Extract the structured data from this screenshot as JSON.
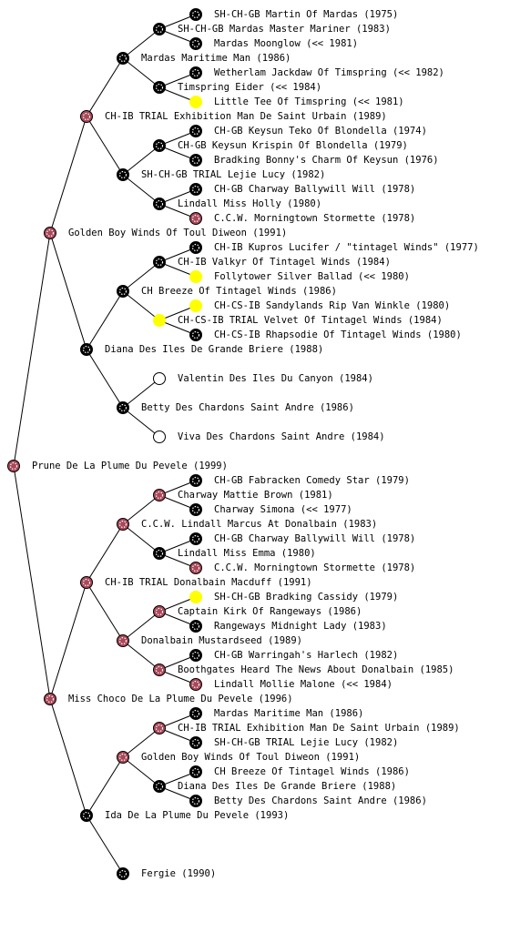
{
  "pedigree": {
    "label": "Prune De La Plume Du Pevele (1999)",
    "color": "#a84858",
    "parents": [
      {
        "label": "Golden Boy Winds Of Toul Diweon (1991)",
        "color": "#a84858",
        "parents": [
          {
            "label": "CH-IB TRIAL Exhibition Man De Saint Urbain (1989)",
            "color": "#a84858",
            "parents": [
              {
                "label": "Mardas Maritime Man (1986)",
                "color": "#000000",
                "parents": [
                  {
                    "label": "SH-CH-GB Mardas Master Mariner (1983)",
                    "color": "#000000",
                    "parents": [
                      {
                        "label": "SH-CH-GB Martin Of Mardas (1975)",
                        "color": "#000000"
                      },
                      {
                        "label": "Mardas Moonglow (<< 1981)",
                        "color": "#000000"
                      }
                    ]
                  },
                  {
                    "label": "Timspring Eider (<< 1984)",
                    "color": "#000000",
                    "parents": [
                      {
                        "label": "Wetherlam Jackdaw Of Timspring (<< 1982)",
                        "color": "#000000"
                      },
                      {
                        "label": "Little Tee Of Timspring (<< 1981)",
                        "color": "#ffff00"
                      }
                    ]
                  }
                ]
              },
              {
                "label": "SH-CH-GB TRIAL Lejie Lucy (1982)",
                "color": "#000000",
                "parents": [
                  {
                    "label": "CH-GB Keysun Krispin Of Blondella (1979)",
                    "color": "#000000",
                    "parents": [
                      {
                        "label": "CH-GB Keysun Teko Of Blondella (1974)",
                        "color": "#000000"
                      },
                      {
                        "label": "Bradking Bonny's Charm Of Keysun (1976)",
                        "color": "#000000"
                      }
                    ]
                  },
                  {
                    "label": "Lindall Miss Holly (1980)",
                    "color": "#000000",
                    "parents": [
                      {
                        "label": "CH-GB Charway Ballywill Will (1978)",
                        "color": "#000000"
                      },
                      {
                        "label": "C.C.W. Morningtown Stormette (1978)",
                        "color": "#a84858"
                      }
                    ]
                  }
                ]
              }
            ]
          },
          {
            "label": "Diana Des Iles De Grande Briere (1988)",
            "color": "#000000",
            "parents": [
              {
                "label": "CH Breeze Of Tintagel Winds (1986)",
                "color": "#000000",
                "parents": [
                  {
                    "label": "CH-IB Valkyr Of Tintagel Winds (1984)",
                    "color": "#000000",
                    "parents": [
                      {
                        "label": "CH-IB Kupros Lucifer / \"tintagel Winds\" (1977)",
                        "color": "#000000"
                      },
                      {
                        "label": "Follytower Silver Ballad (<< 1980)",
                        "color": "#ffff00"
                      }
                    ]
                  },
                  {
                    "label": "CH-CS-IB TRIAL Velvet Of Tintagel Winds (1984)",
                    "color": "#ffff00",
                    "parents": [
                      {
                        "label": "CH-CS-IB Sandylands Rip Van Winkle (1980)",
                        "color": "#ffff00"
                      },
                      {
                        "label": "CH-CS-IB Rhapsodie Of Tintagel Winds (1980)",
                        "color": "#000000"
                      }
                    ]
                  }
                ]
              },
              {
                "label": "Betty Des Chardons Saint Andre (1986)",
                "color": "#000000",
                "parents": [
                  {
                    "label": "Valentin Des Iles Du Canyon (1984)",
                    "color": "#ffffff"
                  },
                  {
                    "label": "Viva Des Chardons Saint Andre (1984)",
                    "color": "#ffffff"
                  }
                ]
              }
            ]
          }
        ]
      },
      {
        "label": "Miss Choco De La Plume Du Pevele (1996)",
        "color": "#a84858",
        "parents": [
          {
            "label": "CH-IB TRIAL Donalbain Macduff (1991)",
            "color": "#a84858",
            "parents": [
              {
                "label": "C.C.W. Lindall Marcus At Donalbain (1983)",
                "color": "#a84858",
                "parents": [
                  {
                    "label": "Charway Mattie Brown (1981)",
                    "color": "#a84858",
                    "parents": [
                      {
                        "label": "CH-GB Fabracken Comedy Star (1979)",
                        "color": "#000000"
                      },
                      {
                        "label": "Charway Simona (<< 1977)",
                        "color": "#000000"
                      }
                    ]
                  },
                  {
                    "label": "Lindall Miss Emma (1980)",
                    "color": "#000000",
                    "parents": [
                      {
                        "label": "CH-GB Charway Ballywill Will (1978)",
                        "color": "#000000"
                      },
                      {
                        "label": "C.C.W. Morningtown Stormette (1978)",
                        "color": "#a84858"
                      }
                    ]
                  }
                ]
              },
              {
                "label": "Donalbain Mustardseed (1989)",
                "color": "#a84858",
                "parents": [
                  {
                    "label": "Captain Kirk Of Rangeways (1986)",
                    "color": "#a84858",
                    "parents": [
                      {
                        "label": "SH-CH-GB Bradking Cassidy (1979)",
                        "color": "#ffff00"
                      },
                      {
                        "label": "Rangeways Midnight Lady (1983)",
                        "color": "#000000"
                      }
                    ]
                  },
                  {
                    "label": "Boothgates Heard The News About Donalbain (1985)",
                    "color": "#a84858",
                    "parents": [
                      {
                        "label": "CH-GB Warringah's Harlech (1982)",
                        "color": "#000000"
                      },
                      {
                        "label": "Lindall Mollie Malone (<< 1984)",
                        "color": "#a84858"
                      }
                    ]
                  }
                ]
              }
            ]
          },
          {
            "label": "Ida De La Plume Du Pevele (1993)",
            "color": "#000000",
            "parents": [
              {
                "label": "Golden Boy Winds Of Toul Diweon (1991)",
                "color": "#a84858",
                "parents": [
                  {
                    "label": "CH-IB TRIAL Exhibition Man De Saint Urbain (1989)",
                    "color": "#a84858",
                    "parents": [
                      {
                        "label": "Mardas Maritime Man (1986)",
                        "color": "#000000"
                      },
                      {
                        "label": "SH-CH-GB TRIAL Lejie Lucy (1982)",
                        "color": "#000000"
                      }
                    ]
                  },
                  {
                    "label": "Diana Des Iles De Grande Briere (1988)",
                    "color": "#000000",
                    "parents": [
                      {
                        "label": "CH Breeze Of Tintagel Winds (1986)",
                        "color": "#000000"
                      },
                      {
                        "label": "Betty Des Chardons Saint Andre (1986)",
                        "color": "#000000"
                      }
                    ]
                  }
                ]
              },
              {
                "label": "Fergie (1990)",
                "color": "#000000"
              }
            ]
          }
        ]
      }
    ]
  }
}
